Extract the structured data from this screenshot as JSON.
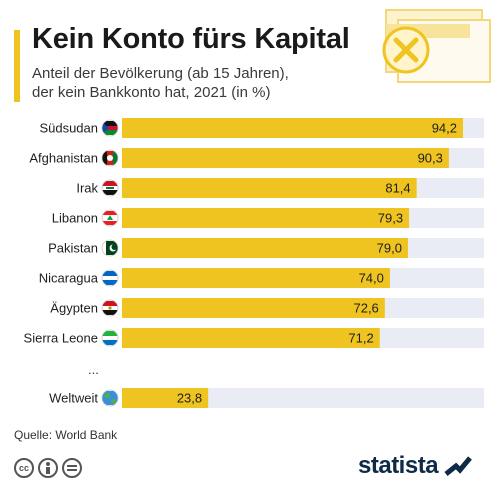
{
  "header": {
    "title": "Kein Konto fürs Kapital",
    "subtitle_line1": "Anteil der Bevölkerung (ab 15 Jahren),",
    "subtitle_line2": "der kein Bankkonto hat, 2021 (in %)"
  },
  "colors": {
    "bar": "#f0c420",
    "track": "#e9ecf5",
    "accent": "#f0c420",
    "brand": "#0e2a47"
  },
  "chart_data": {
    "type": "bar",
    "orientation": "horizontal",
    "xlim": [
      0,
      100
    ],
    "categories": [
      "Südsudan",
      "Afghanistan",
      "Irak",
      "Libanon",
      "Pakistan",
      "Nicaragua",
      "Ägypten",
      "Sierra Leone",
      "Weltweit"
    ],
    "values": [
      94.2,
      90.3,
      81.4,
      79.3,
      79.0,
      74.0,
      72.6,
      71.2,
      23.8
    ],
    "value_labels": [
      "94,2",
      "90,3",
      "81,4",
      "79,3",
      "79,0",
      "74,0",
      "72,6",
      "71,2",
      "23,8"
    ],
    "flag_icons": [
      "south-sudan-flag-icon",
      "afghanistan-flag-icon",
      "iraq-flag-icon",
      "lebanon-flag-icon",
      "pakistan-flag-icon",
      "nicaragua-flag-icon",
      "egypt-flag-icon",
      "sierra-leone-flag-icon",
      "globe-icon"
    ]
  },
  "ellipsis": "...",
  "footer": {
    "source": "Quelle: World Bank",
    "brand": "statista",
    "license_icons": [
      "cc-icon",
      "by-icon",
      "nd-icon"
    ]
  }
}
